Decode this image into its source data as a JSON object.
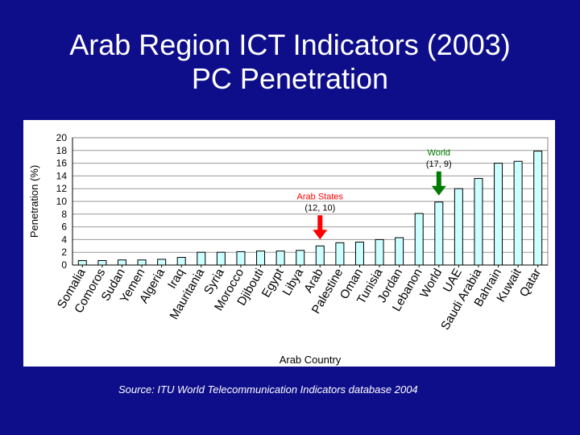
{
  "slide": {
    "title_line1": "Arab Region ICT Indicators (2003)",
    "title_line2": "PC Penetration",
    "source": "Source: ITU World Telecommunication Indicators database 2004"
  },
  "chart_data": {
    "type": "bar",
    "title": "",
    "xlabel": "Arab Country",
    "ylabel": "Penetration (%)",
    "ylim": [
      0,
      20
    ],
    "yticks": [
      0,
      2,
      4,
      6,
      8,
      10,
      12,
      14,
      16,
      18,
      20
    ],
    "grid": true,
    "categories": [
      "Somalia",
      "Comoros",
      "Sudan",
      "Yemen",
      "Algeria",
      "Iraq",
      "Mauritania",
      "Syria",
      "Morocco",
      "Djibouti",
      "Egypt",
      "Libya",
      "Arab",
      "Palestine",
      "Oman",
      "Tunisia",
      "Jordan",
      "Lebanon",
      "World",
      "UAE",
      "Saudi Arabia",
      "Bahrain",
      "Kuwait",
      "Qatar"
    ],
    "values": [
      0.7,
      0.7,
      0.8,
      0.8,
      0.9,
      1.2,
      2.0,
      2.0,
      2.1,
      2.2,
      2.2,
      2.3,
      3.0,
      3.5,
      3.6,
      4.0,
      4.3,
      8.1,
      9.9,
      12.0,
      13.6,
      16.0,
      16.3,
      17.9
    ],
    "bar_color": "#ccffff",
    "annotations": [
      {
        "label": "Arab States",
        "sub": "(12, 10)",
        "category": "Arab",
        "color": "#ff0000"
      },
      {
        "label": "World",
        "sub": "(17, 9)",
        "category": "World",
        "color": "#007a00"
      }
    ]
  }
}
